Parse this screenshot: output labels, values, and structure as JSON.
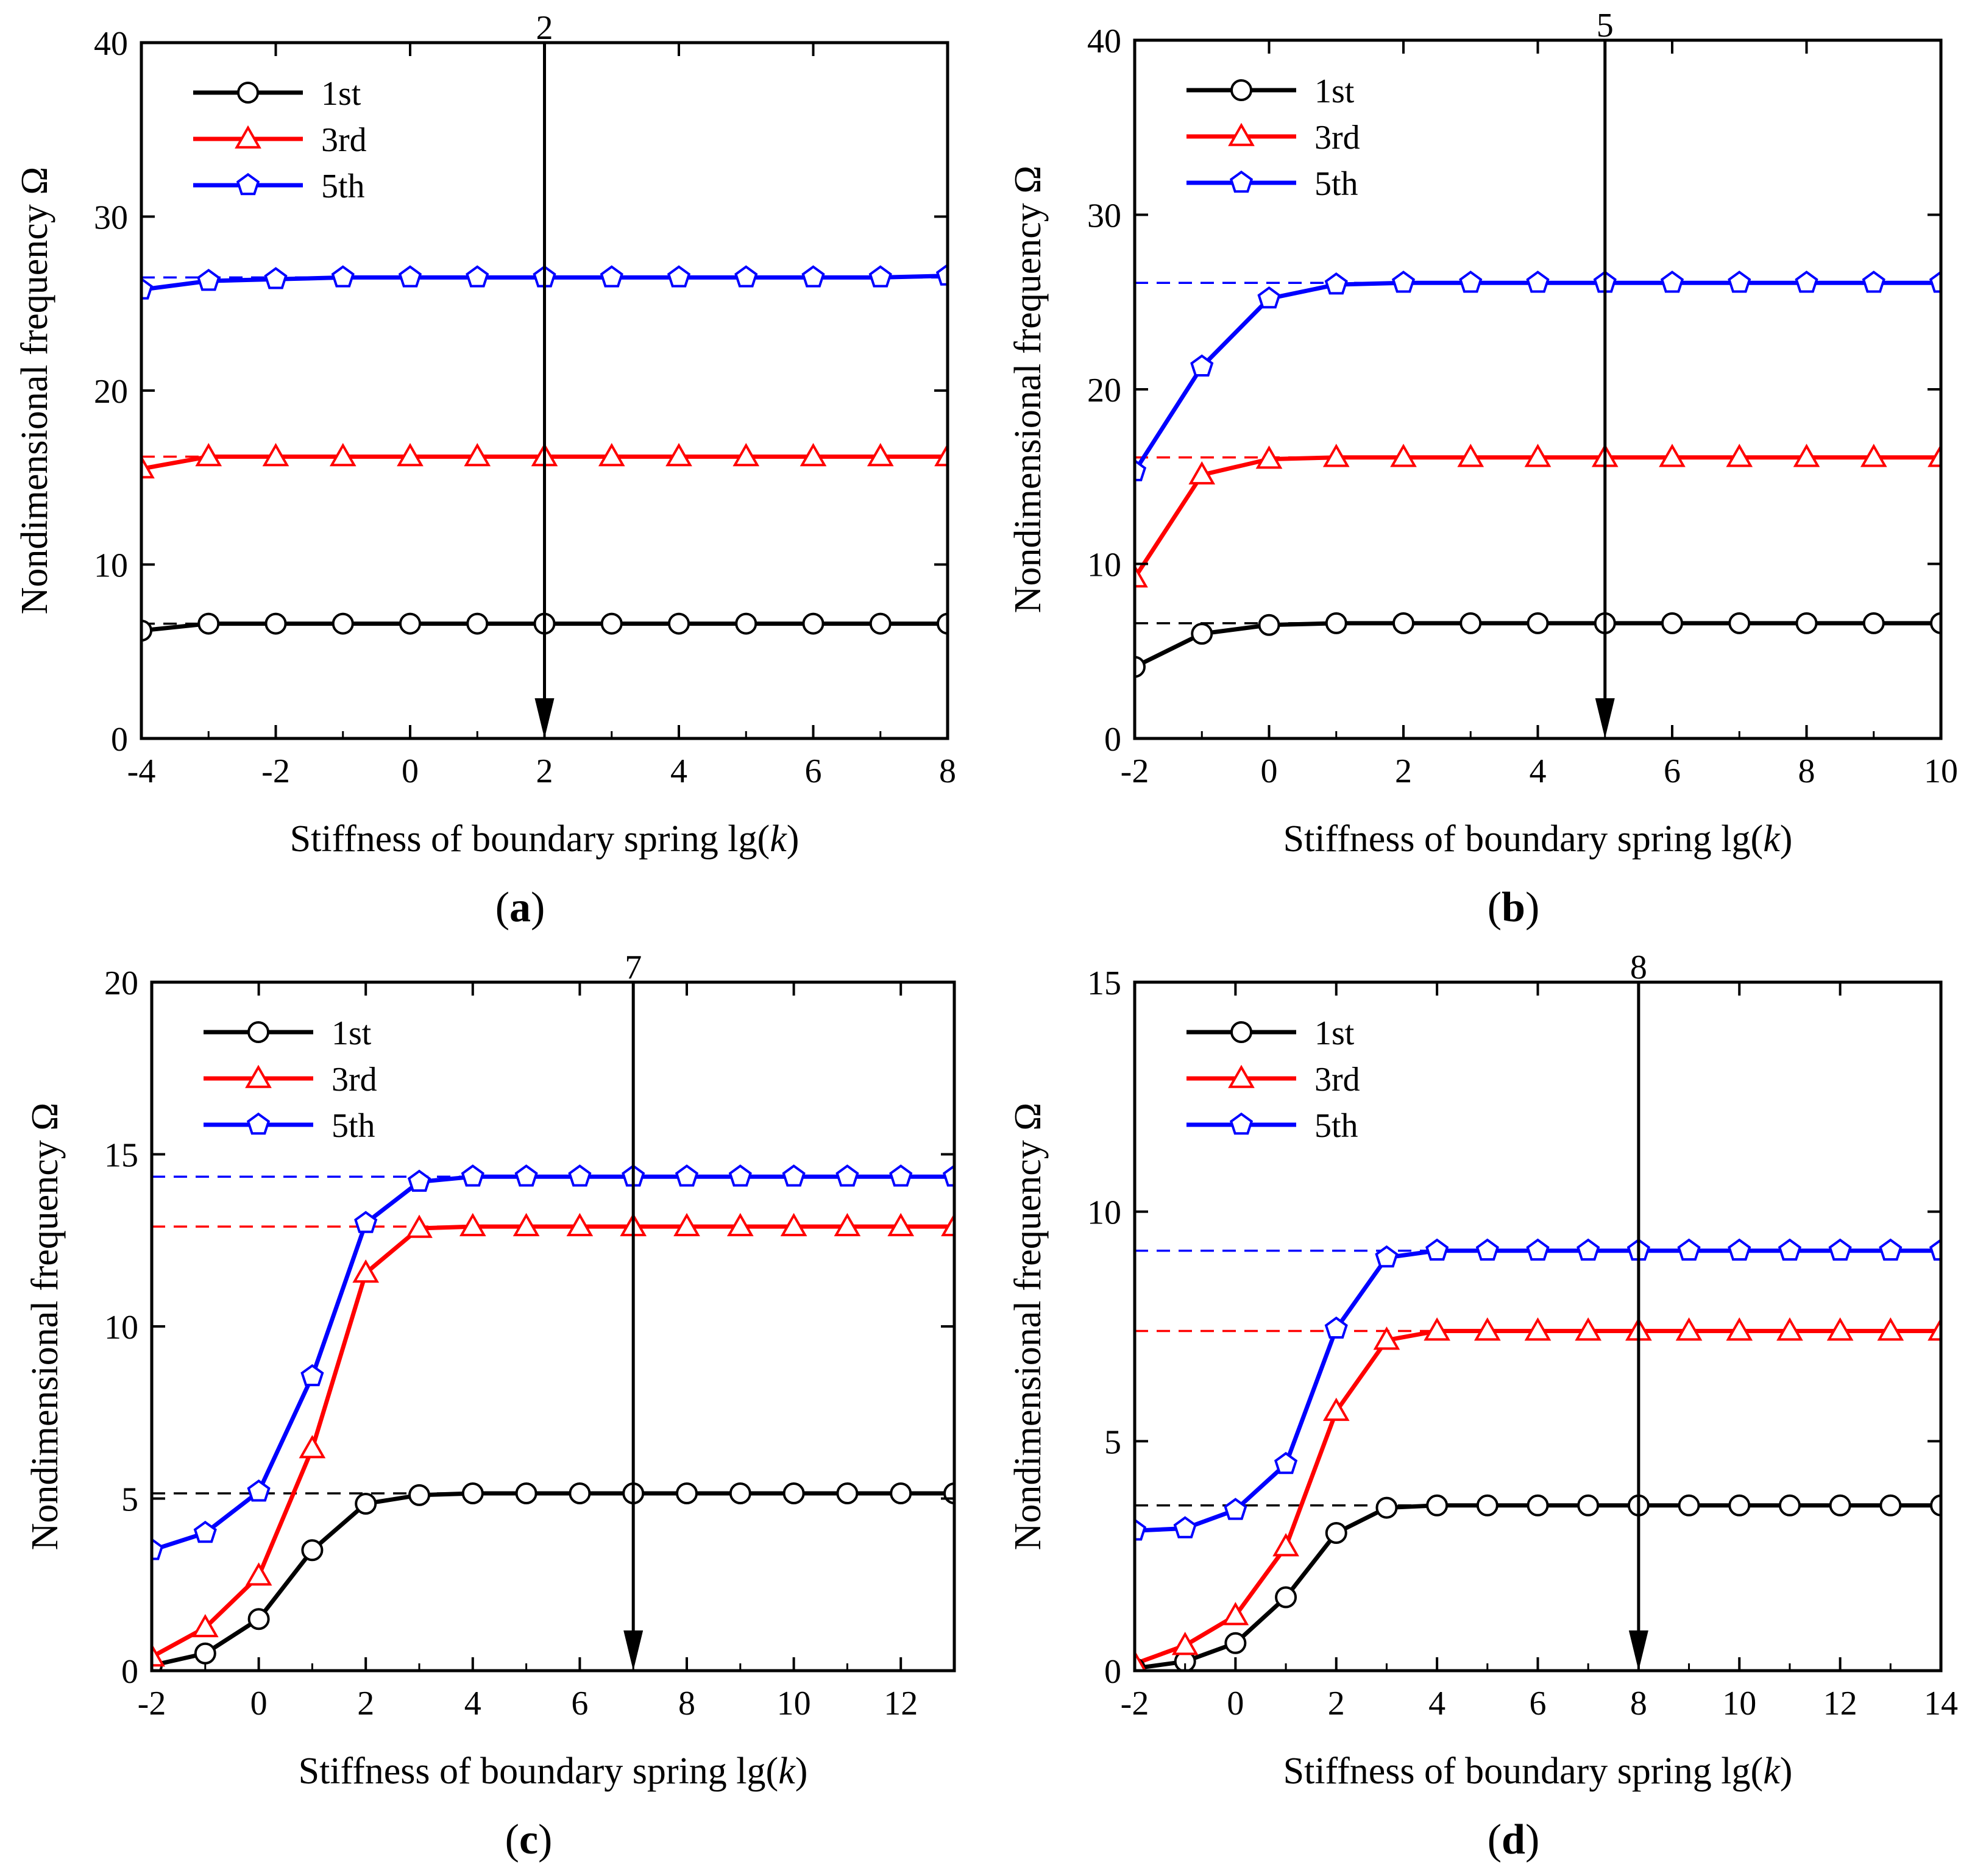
{
  "figure": {
    "panels_order": [
      "a",
      "b",
      "c",
      "d"
    ]
  },
  "chart_data": [
    {
      "panel": "a",
      "type": "line",
      "panel_label": "(a)",
      "panel_letter": "a",
      "xlabel_main": "Stiffness of boundary spring lg(",
      "xlabel_var": "k",
      "xlabel_close": ")",
      "ylabel": "Nondimensional frequency Ω",
      "xlim": [
        -4,
        8
      ],
      "ylim": [
        0,
        40
      ],
      "xticks": [
        -4,
        -2,
        0,
        2,
        4,
        6,
        8
      ],
      "xtick_labels": [
        "-4",
        "-2",
        "0",
        "2",
        "4",
        "6",
        "8"
      ],
      "yticks": [
        0,
        10,
        20,
        30,
        40
      ],
      "ytick_labels": [
        "0",
        "10",
        "20",
        "30",
        "40"
      ],
      "legend_position": "top-left",
      "arrow_x": 2,
      "arrow_label": "2",
      "x": [
        -4,
        -3,
        -2,
        -1,
        0,
        1,
        2,
        3,
        4,
        5,
        6,
        7,
        8
      ],
      "series": [
        {
          "name": "1st",
          "color": "#000000",
          "marker": "circle",
          "ref": 6.6,
          "values": [
            6.2,
            6.6,
            6.6,
            6.6,
            6.6,
            6.6,
            6.6,
            6.6,
            6.6,
            6.6,
            6.6,
            6.6,
            6.6
          ]
        },
        {
          "name": "3rd",
          "color": "#ff0000",
          "marker": "triangle",
          "ref": 16.2,
          "values": [
            15.5,
            16.2,
            16.2,
            16.2,
            16.2,
            16.2,
            16.2,
            16.2,
            16.2,
            16.2,
            16.2,
            16.2,
            16.2
          ]
        },
        {
          "name": "5th",
          "color": "#0000ff",
          "marker": "pentagon",
          "ref": 26.5,
          "values": [
            25.8,
            26.3,
            26.4,
            26.5,
            26.5,
            26.5,
            26.5,
            26.5,
            26.5,
            26.5,
            26.5,
            26.5,
            26.6
          ]
        }
      ]
    },
    {
      "panel": "b",
      "type": "line",
      "panel_label": "(b)",
      "panel_letter": "b",
      "xlabel_main": "Stiffness of boundary spring lg(",
      "xlabel_var": "k",
      "xlabel_close": ")",
      "ylabel": "Nondimensional frequency Ω",
      "xlim": [
        -2,
        10
      ],
      "ylim": [
        0,
        40
      ],
      "xticks": [
        -2,
        0,
        2,
        4,
        6,
        8,
        10
      ],
      "xtick_labels": [
        "-2",
        "0",
        "2",
        "4",
        "6",
        "8",
        "10"
      ],
      "yticks": [
        0,
        10,
        20,
        30,
        40
      ],
      "ytick_labels": [
        "0",
        "10",
        "20",
        "30",
        "40"
      ],
      "legend_position": "top-left",
      "arrow_x": 5,
      "arrow_label": "5",
      "x": [
        -2,
        -1,
        0,
        1,
        2,
        3,
        4,
        5,
        6,
        7,
        8,
        9,
        10
      ],
      "series": [
        {
          "name": "1st",
          "color": "#000000",
          "marker": "circle",
          "ref": 6.6,
          "values": [
            4.1,
            6.0,
            6.5,
            6.6,
            6.6,
            6.6,
            6.6,
            6.6,
            6.6,
            6.6,
            6.6,
            6.6,
            6.6
          ]
        },
        {
          "name": "3rd",
          "color": "#ff0000",
          "marker": "triangle",
          "ref": 16.1,
          "values": [
            9.2,
            15.1,
            16.0,
            16.1,
            16.1,
            16.1,
            16.1,
            16.1,
            16.1,
            16.1,
            16.1,
            16.1,
            16.1
          ]
        },
        {
          "name": "5th",
          "color": "#0000ff",
          "marker": "pentagon",
          "ref": 26.1,
          "values": [
            15.3,
            21.3,
            25.2,
            26.0,
            26.1,
            26.1,
            26.1,
            26.1,
            26.1,
            26.1,
            26.1,
            26.1,
            26.1
          ]
        }
      ]
    },
    {
      "panel": "c",
      "type": "line",
      "panel_label": "(c)",
      "panel_letter": "c",
      "xlabel_main": "Stiffness of boundary spring lg(",
      "xlabel_var": "k",
      "xlabel_close": ")",
      "ylabel": "Nondimensional frequency Ω",
      "xlim": [
        -2,
        13
      ],
      "ylim": [
        0,
        20
      ],
      "xticks": [
        -2,
        0,
        2,
        4,
        6,
        8,
        10,
        12
      ],
      "xtick_labels": [
        "-2",
        "0",
        "2",
        "4",
        "6",
        "8",
        "10",
        "12"
      ],
      "yticks": [
        0,
        5,
        10,
        15,
        20
      ],
      "ytick_labels": [
        "0",
        "5",
        "10",
        "15",
        "20"
      ],
      "legend_position": "top-left",
      "arrow_x": 7,
      "arrow_label": "7",
      "x": [
        -2,
        -1,
        0,
        1,
        2,
        3,
        4,
        5,
        6,
        7,
        8,
        9,
        10,
        11,
        12,
        13
      ],
      "series": [
        {
          "name": "1st",
          "color": "#000000",
          "marker": "circle",
          "ref": 5.15,
          "values": [
            0.15,
            0.5,
            1.5,
            3.5,
            4.85,
            5.1,
            5.15,
            5.15,
            5.15,
            5.15,
            5.15,
            5.15,
            5.15,
            5.15,
            5.15,
            5.15
          ]
        },
        {
          "name": "3rd",
          "color": "#ff0000",
          "marker": "triangle",
          "ref": 12.9,
          "values": [
            0.4,
            1.25,
            2.75,
            6.45,
            11.55,
            12.85,
            12.9,
            12.9,
            12.9,
            12.9,
            12.9,
            12.9,
            12.9,
            12.9,
            12.9,
            12.9
          ]
        },
        {
          "name": "5th",
          "color": "#0000ff",
          "marker": "pentagon",
          "ref": 14.35,
          "values": [
            3.5,
            4.0,
            5.2,
            8.55,
            13.0,
            14.2,
            14.35,
            14.35,
            14.35,
            14.35,
            14.35,
            14.35,
            14.35,
            14.35,
            14.35,
            14.35
          ]
        }
      ]
    },
    {
      "panel": "d",
      "type": "line",
      "panel_label": "(d)",
      "panel_letter": "d",
      "xlabel_main": "Stiffness of boundary spring lg(",
      "xlabel_var": "k",
      "xlabel_close": ")",
      "ylabel": "Nondimensional frequency Ω",
      "xlim": [
        -2,
        14
      ],
      "ylim": [
        0,
        15
      ],
      "xticks": [
        -2,
        0,
        2,
        4,
        6,
        8,
        10,
        12,
        14
      ],
      "xtick_labels": [
        "-2",
        "0",
        "2",
        "4",
        "6",
        "8",
        "10",
        "12",
        "14"
      ],
      "yticks": [
        0,
        5,
        10,
        15
      ],
      "ytick_labels": [
        "0",
        "5",
        "10",
        "15"
      ],
      "legend_position": "top-left",
      "arrow_x": 8,
      "arrow_label": "8",
      "x": [
        -2,
        -1,
        0,
        1,
        2,
        3,
        4,
        5,
        6,
        7,
        8,
        9,
        10,
        11,
        12,
        13,
        14
      ],
      "series": [
        {
          "name": "1st",
          "color": "#000000",
          "marker": "circle",
          "ref": 3.6,
          "values": [
            0.05,
            0.2,
            0.6,
            1.6,
            3.0,
            3.55,
            3.6,
            3.6,
            3.6,
            3.6,
            3.6,
            3.6,
            3.6,
            3.6,
            3.6,
            3.6,
            3.6
          ]
        },
        {
          "name": "3rd",
          "color": "#ff0000",
          "marker": "triangle",
          "ref": 7.4,
          "values": [
            0.15,
            0.55,
            1.2,
            2.7,
            5.65,
            7.2,
            7.4,
            7.4,
            7.4,
            7.4,
            7.4,
            7.4,
            7.4,
            7.4,
            7.4,
            7.4,
            7.4
          ]
        },
        {
          "name": "5th",
          "color": "#0000ff",
          "marker": "pentagon",
          "ref": 9.15,
          "values": [
            3.05,
            3.1,
            3.5,
            4.5,
            7.45,
            9.0,
            9.15,
            9.15,
            9.15,
            9.15,
            9.15,
            9.15,
            9.15,
            9.15,
            9.15,
            9.15,
            9.15
          ]
        }
      ]
    }
  ]
}
